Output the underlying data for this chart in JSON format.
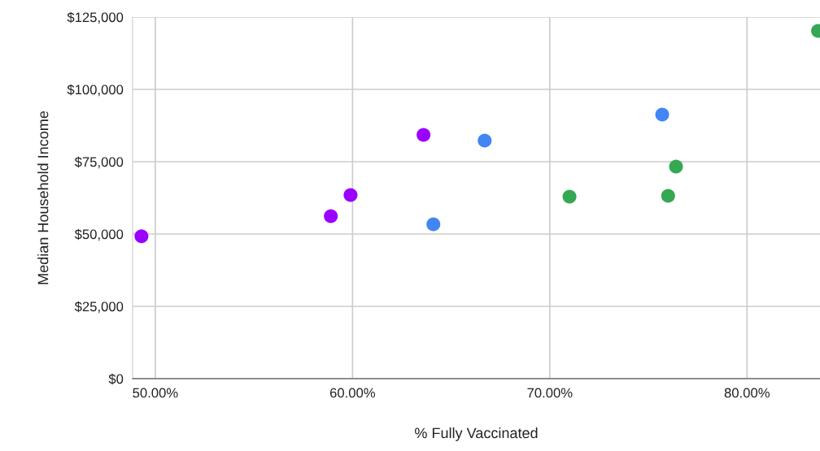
{
  "chart_data": {
    "type": "scatter",
    "xlabel": "% Fully Vaccinated",
    "ylabel": "Median Household Income",
    "xlim": [
      48.85,
      83.7
    ],
    "ylim": [
      0,
      125000
    ],
    "xticks": [
      {
        "value": 50,
        "label": "50.00%"
      },
      {
        "value": 60,
        "label": "60.00%"
      },
      {
        "value": 70,
        "label": "70.00%"
      },
      {
        "value": 80,
        "label": "80.00%"
      }
    ],
    "yticks": [
      {
        "value": 0,
        "label": "$0"
      },
      {
        "value": 25000,
        "label": "$25,000"
      },
      {
        "value": 50000,
        "label": "$50,000"
      },
      {
        "value": 75000,
        "label": "$75,000"
      },
      {
        "value": 100000,
        "label": "$100,000"
      },
      {
        "value": 125000,
        "label": "$125,000"
      }
    ],
    "grid": true,
    "marker": "circle",
    "series": [
      {
        "color": "#9900ff",
        "x": [
          49.3,
          58.9,
          59.9,
          63.6
        ],
        "values": [
          49200,
          56200,
          63500,
          84300
        ]
      },
      {
        "color": "#4285f4",
        "x": [
          64.1,
          66.7,
          75.7
        ],
        "values": [
          53400,
          82300,
          91300
        ]
      },
      {
        "color": "#34a853",
        "x": [
          71.0,
          76.0,
          76.4,
          83.6
        ],
        "values": [
          62900,
          63200,
          73300,
          120200
        ]
      }
    ]
  }
}
